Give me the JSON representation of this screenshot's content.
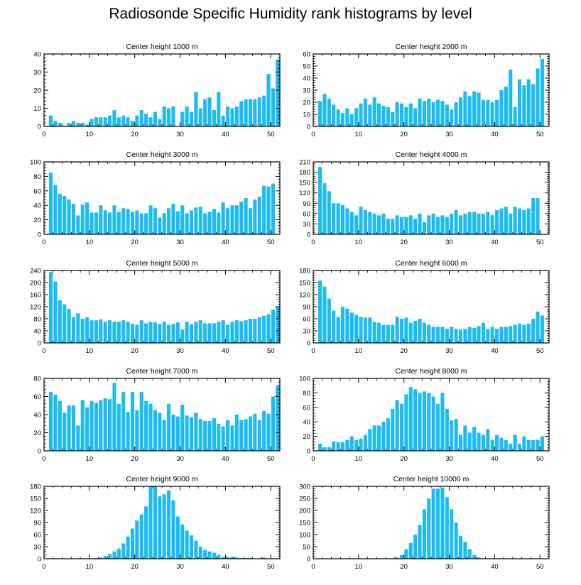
{
  "title": "Radiosonde Specific Humidity rank histograms by level",
  "bar_color": "#1cbcf2",
  "axis_color": "#000000",
  "chart_data": [
    {
      "type": "bar",
      "title": "Center height 1000 m",
      "xlim": [
        0,
        52
      ],
      "ylim": [
        0,
        40
      ],
      "yticks": [
        0,
        10,
        20,
        30,
        40
      ],
      "xticks": [
        0,
        10,
        20,
        30,
        40,
        50
      ],
      "x": [
        0,
        1,
        2,
        3,
        4,
        5,
        6,
        7,
        8,
        9,
        10,
        11,
        12,
        13,
        14,
        15,
        16,
        17,
        18,
        19,
        20,
        21,
        22,
        23,
        24,
        25,
        26,
        27,
        28,
        29,
        30,
        31,
        32,
        33,
        34,
        35,
        36,
        37,
        38,
        39,
        40,
        41,
        42,
        43,
        44,
        45,
        46,
        47,
        48,
        49,
        50,
        51
      ],
      "values": [
        0,
        6,
        3,
        2,
        0,
        2,
        3,
        2,
        2,
        1,
        4,
        5,
        5,
        5,
        6,
        9,
        5,
        6,
        5,
        3,
        6,
        9,
        7,
        5,
        8,
        4,
        11,
        10,
        11,
        0,
        8,
        11,
        8,
        19,
        10,
        15,
        16,
        9,
        19,
        6,
        11,
        10,
        11,
        14,
        15,
        15,
        15,
        16,
        17,
        29,
        21,
        37
      ]
    },
    {
      "type": "bar",
      "title": "Center height 2000 m",
      "xlim": [
        0,
        52
      ],
      "ylim": [
        0,
        60
      ],
      "yticks": [
        0,
        10,
        20,
        30,
        40,
        50,
        60
      ],
      "xticks": [
        0,
        10,
        20,
        30,
        40,
        50
      ],
      "x": [
        0,
        1,
        2,
        3,
        4,
        5,
        6,
        7,
        8,
        9,
        10,
        11,
        12,
        13,
        14,
        15,
        16,
        17,
        18,
        19,
        20,
        21,
        22,
        23,
        24,
        25,
        26,
        27,
        28,
        29,
        30,
        31,
        32,
        33,
        34,
        35,
        36,
        37,
        38,
        39,
        40,
        41,
        42,
        43,
        44,
        45,
        46,
        47,
        48,
        49,
        50,
        51
      ],
      "values": [
        0,
        21,
        27,
        23,
        18,
        14,
        11,
        15,
        10,
        15,
        19,
        23,
        18,
        24,
        19,
        17,
        16,
        12,
        20,
        19,
        16,
        19,
        15,
        23,
        21,
        23,
        20,
        22,
        21,
        18,
        14,
        20,
        24,
        29,
        25,
        29,
        28,
        22,
        22,
        20,
        22,
        30,
        33,
        47,
        16,
        39,
        34,
        39,
        35,
        48,
        56,
        0
      ]
    },
    {
      "type": "bar",
      "title": "Center height 3000 m",
      "xlim": [
        0,
        52
      ],
      "ylim": [
        0,
        100
      ],
      "yticks": [
        0,
        20,
        40,
        60,
        80,
        100
      ],
      "xticks": [
        0,
        10,
        20,
        30,
        40,
        50
      ],
      "x": [
        0,
        1,
        2,
        3,
        4,
        5,
        6,
        7,
        8,
        9,
        10,
        11,
        12,
        13,
        14,
        15,
        16,
        17,
        18,
        19,
        20,
        21,
        22,
        23,
        24,
        25,
        26,
        27,
        28,
        29,
        30,
        31,
        32,
        33,
        34,
        35,
        36,
        37,
        38,
        39,
        40,
        41,
        42,
        43,
        44,
        45,
        46,
        47,
        48,
        49,
        50,
        51
      ],
      "values": [
        0,
        85,
        68,
        56,
        53,
        48,
        42,
        26,
        41,
        44,
        30,
        30,
        40,
        33,
        30,
        40,
        31,
        36,
        35,
        31,
        33,
        29,
        29,
        40,
        36,
        23,
        29,
        36,
        42,
        32,
        40,
        29,
        33,
        37,
        38,
        29,
        31,
        35,
        30,
        44,
        36,
        40,
        40,
        45,
        50,
        36,
        48,
        52,
        67,
        66,
        70,
        0
      ]
    },
    {
      "type": "bar",
      "title": "Center height 4000 m",
      "xlim": [
        0,
        52
      ],
      "ylim": [
        0,
        210
      ],
      "yticks": [
        0,
        30,
        60,
        90,
        120,
        150,
        180,
        210
      ],
      "xticks": [
        0,
        10,
        20,
        30,
        40,
        50
      ],
      "x": [
        0,
        1,
        2,
        3,
        4,
        5,
        6,
        7,
        8,
        9,
        10,
        11,
        12,
        13,
        14,
        15,
        16,
        17,
        18,
        19,
        20,
        21,
        22,
        23,
        24,
        25,
        26,
        27,
        28,
        29,
        30,
        31,
        32,
        33,
        34,
        35,
        36,
        37,
        38,
        39,
        40,
        41,
        42,
        43,
        44,
        45,
        46,
        47,
        48,
        49,
        50,
        51
      ],
      "values": [
        0,
        195,
        148,
        125,
        90,
        90,
        85,
        75,
        65,
        55,
        80,
        70,
        65,
        60,
        55,
        60,
        45,
        45,
        55,
        50,
        50,
        55,
        45,
        60,
        35,
        55,
        60,
        50,
        55,
        50,
        60,
        70,
        55,
        60,
        65,
        65,
        60,
        60,
        65,
        55,
        70,
        75,
        80,
        60,
        80,
        75,
        70,
        75,
        105,
        105,
        0,
        0
      ]
    },
    {
      "type": "bar",
      "title": "Center height 5000 m",
      "xlim": [
        0,
        52
      ],
      "ylim": [
        0,
        240
      ],
      "yticks": [
        0,
        40,
        80,
        120,
        160,
        200,
        240
      ],
      "xticks": [
        0,
        10,
        20,
        30,
        40,
        50
      ],
      "x": [
        0,
        1,
        2,
        3,
        4,
        5,
        6,
        7,
        8,
        9,
        10,
        11,
        12,
        13,
        14,
        15,
        16,
        17,
        18,
        19,
        20,
        21,
        22,
        23,
        24,
        25,
        26,
        27,
        28,
        29,
        30,
        31,
        32,
        33,
        34,
        35,
        36,
        37,
        38,
        39,
        40,
        41,
        42,
        43,
        44,
        45,
        46,
        47,
        48,
        49,
        50,
        51
      ],
      "values": [
        0,
        235,
        203,
        142,
        128,
        113,
        85,
        98,
        80,
        85,
        75,
        75,
        78,
        70,
        75,
        70,
        70,
        75,
        70,
        63,
        60,
        75,
        65,
        70,
        68,
        63,
        70,
        60,
        63,
        68,
        45,
        70,
        62,
        70,
        75,
        65,
        65,
        65,
        70,
        75,
        60,
        70,
        75,
        72,
        75,
        80,
        80,
        85,
        90,
        95,
        110,
        120
      ]
    },
    {
      "type": "bar",
      "title": "Center height 6000 m",
      "xlim": [
        0,
        52
      ],
      "ylim": [
        0,
        180
      ],
      "yticks": [
        0,
        30,
        60,
        90,
        120,
        150,
        180
      ],
      "xticks": [
        0,
        10,
        20,
        30,
        40,
        50
      ],
      "x": [
        0,
        1,
        2,
        3,
        4,
        5,
        6,
        7,
        8,
        9,
        10,
        11,
        12,
        13,
        14,
        15,
        16,
        17,
        18,
        19,
        20,
        21,
        22,
        23,
        24,
        25,
        26,
        27,
        28,
        29,
        30,
        31,
        32,
        33,
        34,
        35,
        36,
        37,
        38,
        39,
        40,
        41,
        42,
        43,
        44,
        45,
        46,
        47,
        48,
        49,
        50,
        51
      ],
      "values": [
        0,
        155,
        140,
        110,
        80,
        65,
        90,
        85,
        75,
        70,
        65,
        63,
        63,
        52,
        50,
        45,
        45,
        45,
        65,
        60,
        63,
        50,
        55,
        60,
        50,
        45,
        40,
        40,
        40,
        35,
        40,
        35,
        33,
        35,
        40,
        37,
        42,
        50,
        35,
        40,
        35,
        40,
        40,
        42,
        45,
        48,
        45,
        48,
        60,
        78,
        68,
        0
      ]
    },
    {
      "type": "bar",
      "title": "Center height 7000 m",
      "xlim": [
        0,
        52
      ],
      "ylim": [
        0,
        80
      ],
      "yticks": [
        0,
        20,
        40,
        60,
        80
      ],
      "xticks": [
        0,
        10,
        20,
        30,
        40,
        50
      ],
      "x": [
        0,
        1,
        2,
        3,
        4,
        5,
        6,
        7,
        8,
        9,
        10,
        11,
        12,
        13,
        14,
        15,
        16,
        17,
        18,
        19,
        20,
        21,
        22,
        23,
        24,
        25,
        26,
        27,
        28,
        29,
        30,
        31,
        32,
        33,
        34,
        35,
        36,
        37,
        38,
        39,
        40,
        41,
        42,
        43,
        44,
        45,
        46,
        47,
        48,
        49,
        50,
        51
      ],
      "values": [
        0,
        65,
        62,
        55,
        42,
        50,
        50,
        28,
        56,
        48,
        55,
        53,
        56,
        58,
        57,
        75,
        52,
        65,
        43,
        65,
        45,
        65,
        55,
        52,
        45,
        42,
        34,
        52,
        40,
        38,
        51,
        39,
        37,
        42,
        35,
        33,
        33,
        36,
        30,
        27,
        34,
        28,
        40,
        34,
        35,
        38,
        41,
        34,
        44,
        41,
        60,
        72
      ]
    },
    {
      "type": "bar",
      "title": "Center height 8000 m",
      "xlim": [
        0,
        52
      ],
      "ylim": [
        0,
        100
      ],
      "yticks": [
        0,
        20,
        40,
        60,
        80,
        100
      ],
      "xticks": [
        0,
        10,
        20,
        30,
        40,
        50
      ],
      "x": [
        0,
        1,
        2,
        3,
        4,
        5,
        6,
        7,
        8,
        9,
        10,
        11,
        12,
        13,
        14,
        15,
        16,
        17,
        18,
        19,
        20,
        21,
        22,
        23,
        24,
        25,
        26,
        27,
        28,
        29,
        30,
        31,
        32,
        33,
        34,
        35,
        36,
        37,
        38,
        39,
        40,
        41,
        42,
        43,
        44,
        45,
        46,
        47,
        48,
        49,
        50,
        51
      ],
      "values": [
        0,
        10,
        5,
        5,
        13,
        12,
        12,
        15,
        20,
        15,
        17,
        22,
        30,
        35,
        35,
        40,
        45,
        58,
        70,
        65,
        78,
        88,
        85,
        80,
        82,
        80,
        75,
        65,
        80,
        58,
        42,
        44,
        22,
        35,
        25,
        33,
        25,
        22,
        30,
        15,
        22,
        18,
        15,
        10,
        22,
        10,
        20,
        15,
        15,
        15,
        20,
        0
      ]
    },
    {
      "type": "bar",
      "title": "Center height 9000 m",
      "xlim": [
        0,
        52
      ],
      "ylim": [
        0,
        180
      ],
      "yticks": [
        0,
        30,
        60,
        90,
        120,
        150,
        180
      ],
      "xticks": [
        0,
        10,
        20,
        30,
        40,
        50
      ],
      "x": [
        0,
        1,
        2,
        3,
        4,
        5,
        6,
        7,
        8,
        9,
        10,
        11,
        12,
        13,
        14,
        15,
        16,
        17,
        18,
        19,
        20,
        21,
        22,
        23,
        24,
        25,
        26,
        27,
        28,
        29,
        30,
        31,
        32,
        33,
        34,
        35,
        36,
        37,
        38,
        39,
        40,
        41,
        42,
        43,
        44,
        45,
        46,
        47,
        48,
        49,
        50,
        51
      ],
      "values": [
        0,
        0,
        0,
        0,
        0,
        0,
        0,
        0,
        0,
        0,
        0,
        2,
        3,
        7,
        12,
        18,
        25,
        38,
        55,
        75,
        95,
        110,
        130,
        180,
        180,
        155,
        160,
        170,
        145,
        105,
        85,
        70,
        58,
        45,
        30,
        22,
        18,
        15,
        10,
        5,
        5,
        5,
        3,
        2,
        2,
        2,
        0,
        0,
        3,
        0,
        0,
        0
      ]
    },
    {
      "type": "bar",
      "title": "Center height 10000 m",
      "xlim": [
        0,
        52
      ],
      "ylim": [
        0,
        300
      ],
      "yticks": [
        0,
        50,
        100,
        150,
        200,
        250,
        300
      ],
      "xticks": [
        0,
        10,
        20,
        30,
        40,
        50
      ],
      "x": [
        0,
        1,
        2,
        3,
        4,
        5,
        6,
        7,
        8,
        9,
        10,
        11,
        12,
        13,
        14,
        15,
        16,
        17,
        18,
        19,
        20,
        21,
        22,
        23,
        24,
        25,
        26,
        27,
        28,
        29,
        30,
        31,
        32,
        33,
        34,
        35,
        36,
        37,
        38,
        39,
        40,
        41,
        42,
        43,
        44,
        45,
        46,
        47,
        48,
        49,
        50,
        51
      ],
      "values": [
        0,
        0,
        0,
        0,
        0,
        0,
        0,
        0,
        0,
        0,
        0,
        0,
        0,
        0,
        0,
        0,
        0,
        2,
        5,
        15,
        40,
        65,
        100,
        140,
        205,
        250,
        290,
        290,
        295,
        255,
        205,
        150,
        95,
        70,
        40,
        15,
        5,
        2,
        0,
        0,
        0,
        0,
        0,
        0,
        0,
        0,
        0,
        0,
        0,
        0,
        0,
        0
      ]
    }
  ]
}
